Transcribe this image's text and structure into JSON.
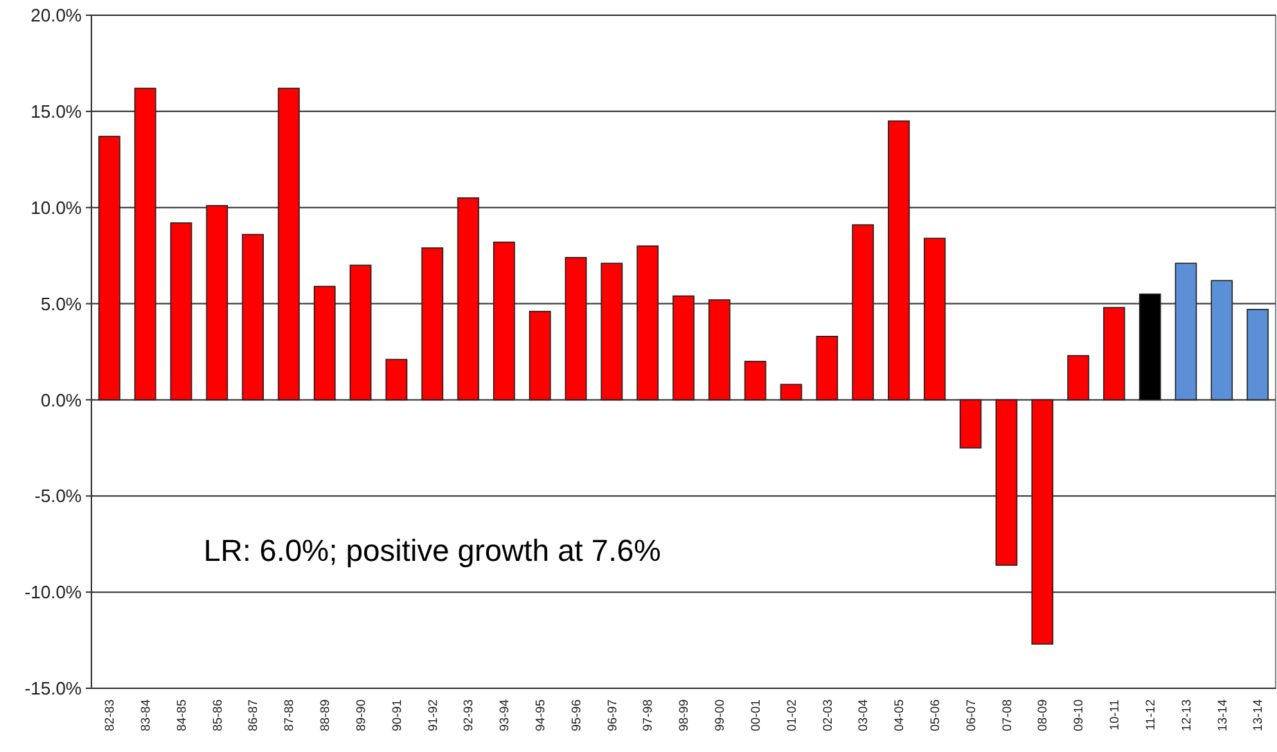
{
  "chart_data": {
    "type": "bar",
    "categories": [
      "82-83",
      "83-84",
      "84-85",
      "85-86",
      "86-87",
      "87-88",
      "88-89",
      "89-90",
      "90-91",
      "91-92",
      "92-93",
      "93-94",
      "94-95",
      "95-96",
      "96-97",
      "97-98",
      "98-99",
      "99-00",
      "00-01",
      "01-02",
      "02-03",
      "03-04",
      "04-05",
      "05-06",
      "06-07",
      "07-08",
      "08-09",
      "09-10",
      "10-11",
      "11-12",
      "12-13",
      "13-14",
      "13-14"
    ],
    "values": [
      13.7,
      16.2,
      9.2,
      10.1,
      8.6,
      16.2,
      5.9,
      7.0,
      2.1,
      7.9,
      10.5,
      8.2,
      4.6,
      7.4,
      7.1,
      8.0,
      5.4,
      5.2,
      2.0,
      0.8,
      3.3,
      9.1,
      14.5,
      8.4,
      -2.5,
      -8.6,
      -12.7,
      2.3,
      4.8,
      5.5,
      7.1,
      6.2,
      4.7
    ],
    "colors": [
      "#ff0000",
      "#ff0000",
      "#ff0000",
      "#ff0000",
      "#ff0000",
      "#ff0000",
      "#ff0000",
      "#ff0000",
      "#ff0000",
      "#ff0000",
      "#ff0000",
      "#ff0000",
      "#ff0000",
      "#ff0000",
      "#ff0000",
      "#ff0000",
      "#ff0000",
      "#ff0000",
      "#ff0000",
      "#ff0000",
      "#ff0000",
      "#ff0000",
      "#ff0000",
      "#ff0000",
      "#ff0000",
      "#ff0000",
      "#ff0000",
      "#ff0000",
      "#ff0000",
      "#000000",
      "#5b8fd6",
      "#5b8fd6",
      "#5b8fd6"
    ],
    "ylim": [
      -15,
      20
    ],
    "yticks": [
      {
        "value": -15,
        "label": "-15.0%"
      },
      {
        "value": -10,
        "label": "-10.0%"
      },
      {
        "value": -5,
        "label": "-5.0%"
      },
      {
        "value": 0,
        "label": "0.0%"
      },
      {
        "value": 5,
        "label": "5.0%"
      },
      {
        "value": 10,
        "label": "10.0%"
      },
      {
        "value": 15,
        "label": "15.0%"
      },
      {
        "value": 20,
        "label": "20.0%"
      }
    ],
    "grid": "y",
    "annotations": [
      "LR: 6.0%;  positive growth at 7.6%"
    ]
  }
}
